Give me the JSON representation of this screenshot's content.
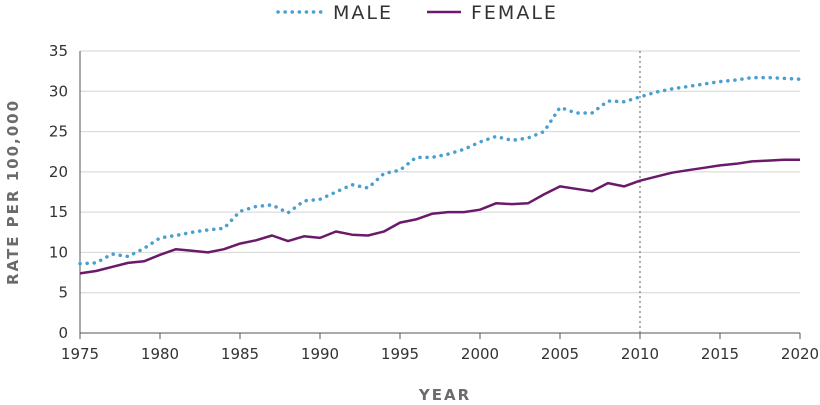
{
  "chart_data": {
    "type": "line",
    "title": "",
    "xlabel": "YEAR",
    "ylabel": "RATE PER 100,000",
    "xlim": [
      1975,
      2020
    ],
    "ylim": [
      0,
      35
    ],
    "xticks": [
      "1975",
      "1980",
      "1985",
      "1990",
      "1995",
      "2000",
      "2005",
      "2010",
      "2015",
      "2020"
    ],
    "yticks": [
      "0",
      "5",
      "10",
      "15",
      "20",
      "25",
      "30",
      "35"
    ],
    "grid": "horizontal",
    "legend_position": "top-center",
    "reference_line_x": 2010,
    "series": [
      {
        "name": "MALE",
        "style": "dotted",
        "color": "#4a9fd0",
        "x": [
          1975,
          1976,
          1977,
          1978,
          1979,
          1980,
          1981,
          1982,
          1983,
          1984,
          1985,
          1986,
          1987,
          1988,
          1989,
          1990,
          1991,
          1992,
          1993,
          1994,
          1995,
          1996,
          1997,
          1998,
          1999,
          2000,
          2001,
          2002,
          2003,
          2004,
          2005,
          2006,
          2007,
          2008,
          2009,
          2010,
          2011,
          2012,
          2013,
          2014,
          2015,
          2016,
          2017,
          2018,
          2019,
          2020
        ],
        "values": [
          8.6,
          8.7,
          9.8,
          9.5,
          10.5,
          11.8,
          12.1,
          12.5,
          12.8,
          13.0,
          15.1,
          15.7,
          15.9,
          14.9,
          16.4,
          16.6,
          17.5,
          18.4,
          18.0,
          19.8,
          20.2,
          21.8,
          21.8,
          22.2,
          22.8,
          23.7,
          24.4,
          23.9,
          24.2,
          25.0,
          28.0,
          27.3,
          27.3,
          28.8,
          28.7,
          29.3,
          29.9,
          30.3,
          30.6,
          30.9,
          31.2,
          31.4,
          31.7,
          31.7,
          31.6,
          31.5
        ]
      },
      {
        "name": "FEMALE",
        "style": "solid",
        "color": "#6b1a6b",
        "x": [
          1975,
          1976,
          1977,
          1978,
          1979,
          1980,
          1981,
          1982,
          1983,
          1984,
          1985,
          1986,
          1987,
          1988,
          1989,
          1990,
          1991,
          1992,
          1993,
          1994,
          1995,
          1996,
          1997,
          1998,
          1999,
          2000,
          2001,
          2002,
          2003,
          2004,
          2005,
          2006,
          2007,
          2008,
          2009,
          2010,
          2011,
          2012,
          2013,
          2014,
          2015,
          2016,
          2017,
          2018,
          2019,
          2020
        ],
        "values": [
          7.4,
          7.7,
          8.2,
          8.7,
          8.9,
          9.7,
          10.4,
          10.2,
          10.0,
          10.4,
          11.1,
          11.5,
          12.1,
          11.4,
          12.0,
          11.8,
          12.6,
          12.2,
          12.1,
          12.6,
          13.7,
          14.1,
          14.8,
          15.0,
          15.0,
          15.3,
          16.1,
          16.0,
          16.1,
          17.2,
          18.2,
          17.9,
          17.6,
          18.6,
          18.2,
          18.9,
          19.4,
          19.9,
          20.2,
          20.5,
          20.8,
          21.0,
          21.3,
          21.4,
          21.5,
          21.5
        ]
      }
    ]
  }
}
